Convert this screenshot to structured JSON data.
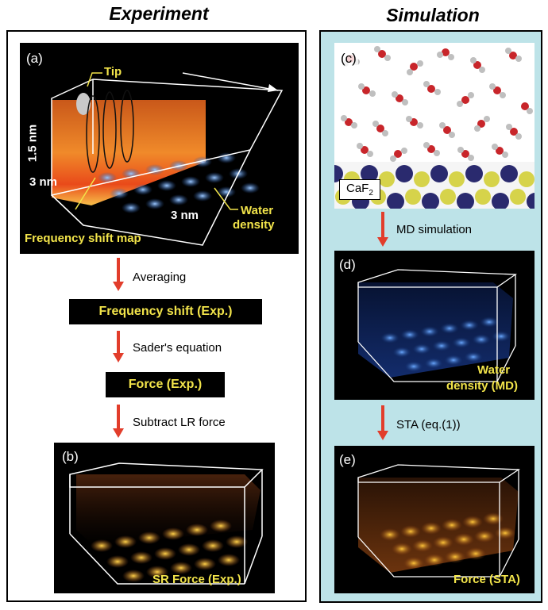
{
  "headings": {
    "experiment": "Experiment",
    "simulation": "Simulation"
  },
  "panel_a": {
    "label": "(a)",
    "tip": "Tip",
    "height": "1.5 nm",
    "width_left": "3 nm",
    "width_bottom": "3 nm",
    "water_line1": "Water",
    "water_line2": "density",
    "freq_map": "Frequency shift map"
  },
  "left_steps": {
    "averaging": "Averaging",
    "freq_box": "Frequency shift (Exp.)",
    "sader": "Sader's equation",
    "force_box": "Force (Exp.)",
    "subtract": "Subtract LR force"
  },
  "panel_b": {
    "label": "(b)",
    "caption": "SR Force (Exp.)"
  },
  "panel_c": {
    "label": "(c)",
    "substrate": "CaF",
    "substrate_sub": "2"
  },
  "right_steps": {
    "md": "MD simulation",
    "sta": "STA (eq.(1))"
  },
  "panel_d": {
    "label": "(d)",
    "caption_line1": "Water",
    "caption_line2": "density (MD)"
  },
  "panel_e": {
    "label": "(e)",
    "caption": "Force (STA)"
  },
  "colors": {
    "arrow": "#e23d2b",
    "label_yellow": "#f2e44a",
    "sim_bg": "#bde3e8"
  }
}
